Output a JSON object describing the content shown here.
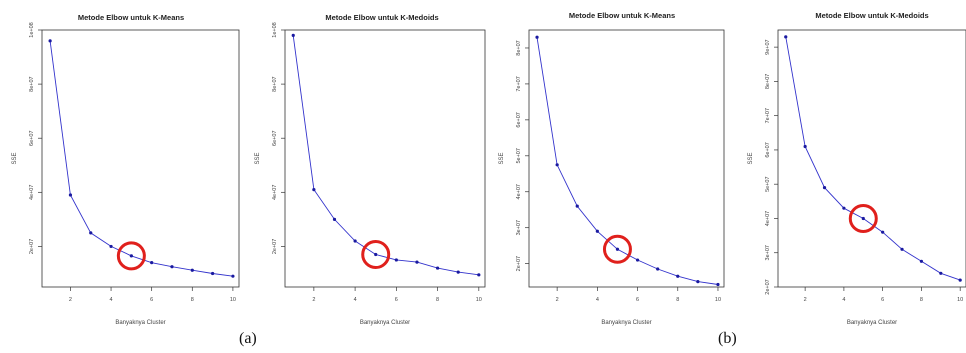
{
  "chart_data": [
    {
      "type": "line",
      "title": "Metode Elbow untuk K-Means",
      "xlabel": "Banyaknya Cluster",
      "ylabel": "SSE",
      "x": [
        1,
        2,
        3,
        4,
        5,
        6,
        7,
        8,
        9,
        10
      ],
      "xticks": [
        2,
        4,
        6,
        8,
        10
      ],
      "y": [
        96000000.0,
        39000000.0,
        25000000.0,
        20000000.0,
        16500000.0,
        14000000.0,
        12500000.0,
        11200000.0,
        10000000.0,
        9000000.0
      ],
      "yticks": [
        20000000.0,
        40000000.0,
        60000000.0,
        80000000.0,
        100000000.0
      ],
      "ytick_labels": [
        "2e+07",
        "4e+07",
        "6e+07",
        "8e+07",
        "1e+08"
      ],
      "ylim": [
        5000000.0,
        100000000.0
      ],
      "xlim": [
        0.6,
        10.3
      ],
      "highlight_x": 5,
      "color": "#3333cc",
      "highlight_color": "#e0201c"
    },
    {
      "type": "line",
      "title": "Metode Elbow untuk K-Medoids",
      "xlabel": "Banyaknya Cluster",
      "ylabel": "SSE",
      "x": [
        1,
        2,
        3,
        4,
        5,
        6,
        7,
        8,
        9,
        10
      ],
      "xticks": [
        2,
        4,
        6,
        8,
        10
      ],
      "y": [
        98000000.0,
        41000000.0,
        30000000.0,
        22000000.0,
        17000000.0,
        15000000.0,
        14200000.0,
        12000000.0,
        10500000.0,
        9500000.0
      ],
      "yticks": [
        20000000.0,
        40000000.0,
        60000000.0,
        80000000.0,
        100000000.0
      ],
      "ytick_labels": [
        "2e+07",
        "4e+07",
        "6e+07",
        "8e+07",
        "1e+08"
      ],
      "ylim": [
        5000000.0,
        100000000.0
      ],
      "xlim": [
        0.6,
        10.3
      ],
      "highlight_x": 5,
      "color": "#3333cc",
      "highlight_color": "#e0201c"
    },
    {
      "type": "line",
      "title": "Metode Elbow untuk K-Means",
      "xlabel": "Banyaknya Cluster",
      "ylabel": "SSE",
      "x": [
        1,
        2,
        3,
        4,
        5,
        6,
        7,
        8,
        9,
        10
      ],
      "xticks": [
        2,
        4,
        6,
        8,
        10
      ],
      "y": [
        83000000.0,
        47500000.0,
        36000000.0,
        29000000.0,
        24000000.0,
        21000000.0,
        18500000.0,
        16500000.0,
        15000000.0,
        14200000.0
      ],
      "yticks": [
        20000000.0,
        30000000.0,
        40000000.0,
        50000000.0,
        60000000.0,
        70000000.0,
        80000000.0
      ],
      "ytick_labels": [
        "2e+07",
        "3e+07",
        "4e+07",
        "5e+07",
        "6e+07",
        "7e+07",
        "8e+07"
      ],
      "ylim": [
        13500000.0,
        85000000.0
      ],
      "xlim": [
        0.6,
        10.3
      ],
      "highlight_x": 5,
      "color": "#3333cc",
      "highlight_color": "#e0201c"
    },
    {
      "type": "line",
      "title": "Metode Elbow untuk K-Medoids",
      "xlabel": "Banyaknya Cluster",
      "ylabel": "SSE",
      "x": [
        1,
        2,
        3,
        4,
        5,
        6,
        7,
        8,
        9,
        10
      ],
      "xticks": [
        2,
        4,
        6,
        8,
        10
      ],
      "y": [
        93000000.0,
        61000000.0,
        49000000.0,
        43000000.0,
        40000000.0,
        36000000.0,
        31000000.0,
        27500000.0,
        24000000.0,
        22000000.0
      ],
      "yticks": [
        20000000.0,
        30000000.0,
        40000000.0,
        50000000.0,
        60000000.0,
        70000000.0,
        80000000.0,
        90000000.0
      ],
      "ytick_labels": [
        "2e+07",
        "3e+07",
        "4e+07",
        "5e+07",
        "6e+07",
        "7e+07",
        "8e+07",
        "9e+07"
      ],
      "ylim": [
        20000000.0,
        95000000.0
      ],
      "xlim": [
        0.6,
        10.3
      ],
      "highlight_x": 5,
      "color": "#3333cc",
      "highlight_color": "#e0201c"
    }
  ],
  "captions": [
    "(a)",
    "(b)"
  ]
}
